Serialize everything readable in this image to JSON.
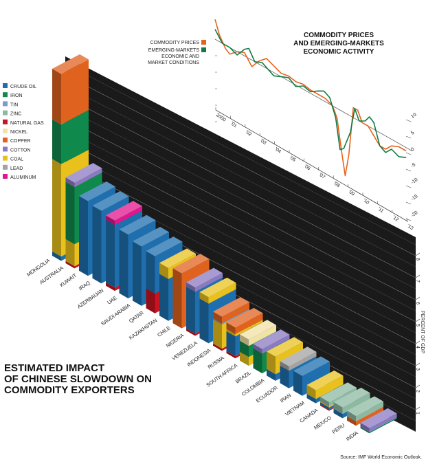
{
  "commodity_colors": {
    "CRUDE OIL": "#1f6fae",
    "IRON": "#0f8a4c",
    "TIN": "#7c9bc9",
    "ZINC": "#8db9a2",
    "NATURAL GAS": "#c8141e",
    "NICKEL": "#f1e2a6",
    "COPPER": "#e0621f",
    "COTTON": "#8a7ac2",
    "COAL": "#e8c11d",
    "LEAD": "#a3a3a3",
    "ALUMINUM": "#e0168c"
  },
  "chart_data": [
    {
      "type": "bar",
      "stacked": true,
      "title": "ESTIMATED IMPACT OF CHINESE SLOWDOWN ON COMMODITY EXPORTERS",
      "ylabel": "PERCENT OF GDP",
      "ylim": [
        0,
        8
      ],
      "yticks": [
        "1",
        "2",
        "3",
        "4",
        "5",
        "6",
        "7",
        "8"
      ],
      "legend": [
        "CRUDE OIL",
        "IRON",
        "TIN",
        "ZINC",
        "NATURAL GAS",
        "NICKEL",
        "COPPER",
        "COTTON",
        "COAL",
        "LEAD",
        "ALUMINUM"
      ],
      "legend_placement": "left",
      "countries": [
        {
          "name": "MONGOLIA",
          "segments": [
            [
              "CRUDE OIL",
              0.2
            ],
            [
              "COAL",
              4.2
            ],
            [
              "IRON",
              1.8
            ],
            [
              "COPPER",
              2.3
            ]
          ]
        },
        {
          "name": "AUSTRALIA",
          "segments": [
            [
              "NATURAL GAS",
              0.1
            ],
            [
              "COAL",
              1.0
            ],
            [
              "IRON",
              2.6
            ],
            [
              "COTTON",
              0.2
            ]
          ]
        },
        {
          "name": "KUWAIT",
          "segments": [
            [
              "CRUDE OIL",
              3.4
            ]
          ]
        },
        {
          "name": "IRAQ",
          "segments": [
            [
              "CRUDE OIL",
              3.3
            ]
          ]
        },
        {
          "name": "AZERBAIJAN",
          "segments": [
            [
              "NATURAL GAS",
              0.15
            ],
            [
              "CRUDE OIL",
              2.85
            ],
            [
              "ALUMINUM",
              0.2
            ]
          ]
        },
        {
          "name": "UAE",
          "segments": [
            [
              "CRUDE OIL",
              2.9
            ]
          ]
        },
        {
          "name": "SAUDI ARABIA",
          "segments": [
            [
              "CRUDE OIL",
              2.7
            ]
          ]
        },
        {
          "name": "QATAR",
          "segments": [
            [
              "NATURAL GAS",
              0.9
            ],
            [
              "CRUDE OIL",
              1.7
            ]
          ]
        },
        {
          "name": "KAZAKHSTAN",
          "segments": [
            [
              "CRUDE OIL",
              1.9
            ],
            [
              "COAL",
              0.5
            ]
          ]
        },
        {
          "name": "CHILE",
          "segments": [
            [
              "COPPER",
              2.5
            ]
          ]
        },
        {
          "name": "NIGERIA",
          "segments": [
            [
              "NATURAL GAS",
              0.1
            ],
            [
              "CRUDE OIL",
              1.9
            ],
            [
              "COTTON",
              0.2
            ]
          ]
        },
        {
          "name": "VENEZUELA",
          "segments": [
            [
              "CRUDE OIL",
              1.8
            ],
            [
              "COAL",
              0.3
            ]
          ]
        },
        {
          "name": "INDONESIA",
          "segments": [
            [
              "NATURAL GAS",
              0.1
            ],
            [
              "COAL",
              1.1
            ],
            [
              "TIN",
              0.05
            ],
            [
              "COPPER",
              0.3
            ]
          ]
        },
        {
          "name": "RUSSIA",
          "segments": [
            [
              "NATURAL GAS",
              0.1
            ],
            [
              "CRUDE OIL",
              0.9
            ],
            [
              "COAL",
              0.1
            ],
            [
              "COPPER",
              0.3
            ]
          ]
        },
        {
          "name": "SOUTH AFRICA",
          "segments": [
            [
              "COAL",
              0.4
            ],
            [
              "IRON",
              0.5
            ],
            [
              "NICKEL",
              0.3
            ]
          ]
        },
        {
          "name": "BRAZIL",
          "segments": [
            [
              "IRON",
              0.9
            ],
            [
              "COTTON",
              0.2
            ]
          ]
        },
        {
          "name": "COLOMBIA",
          "segments": [
            [
              "CRUDE OIL",
              0.3
            ],
            [
              "COAL",
              0.8
            ]
          ]
        },
        {
          "name": "ECUADOR",
          "segments": [
            [
              "CRUDE OIL",
              0.8
            ],
            [
              "LEAD",
              0.2
            ]
          ]
        },
        {
          "name": "IRAN",
          "segments": [
            [
              "CRUDE OIL",
              0.9
            ]
          ]
        },
        {
          "name": "VIETNAM",
          "segments": [
            [
              "CRUDE OIL",
              0.2
            ],
            [
              "COAL",
              0.4
            ]
          ]
        },
        {
          "name": "CANADA",
          "segments": [
            [
              "NATURAL GAS",
              0.05
            ],
            [
              "CRUDE OIL",
              0.1
            ],
            [
              "COAL",
              0.05
            ],
            [
              "ZINC",
              0.2
            ]
          ]
        },
        {
          "name": "MEXICO",
          "segments": [
            [
              "CRUDE OIL",
              0.2
            ],
            [
              "ZINC",
              0.3
            ]
          ]
        },
        {
          "name": "PERU",
          "segments": [
            [
              "COPPER",
              0.2
            ],
            [
              "ZINC",
              0.25
            ]
          ]
        },
        {
          "name": "INDIA",
          "segments": [
            [
              "IRON",
              0.05
            ],
            [
              "COTTON",
              0.2
            ]
          ]
        }
      ]
    },
    {
      "type": "line",
      "title": "COMMODITY PRICES AND EMERGING-MARKETS ECONOMIC ACTIVITY",
      "xticks": [
        "2000",
        "'01",
        "'02",
        "'03",
        "'04",
        "'05",
        "'06",
        "'07",
        "'08",
        "'09",
        "'10",
        "'11",
        "'12",
        "'13"
      ],
      "yticks": [
        "10",
        "5",
        "0",
        "-5",
        "-10",
        "-15",
        "-20"
      ],
      "ylim": [
        -20,
        10
      ],
      "series": [
        {
          "name": "COMMODITY PRICES",
          "color": "#e8621c",
          "x": [
            2000.0,
            2000.3,
            2000.7,
            2001.0,
            2001.5,
            2002.0,
            2002.5,
            2003.0,
            2003.5,
            2004.0,
            2004.5,
            2005.0,
            2005.5,
            2006.0,
            2006.5,
            2007.0,
            2007.5,
            2008.0,
            2008.3,
            2008.6,
            2008.85,
            2009.1,
            2009.4,
            2009.7,
            2010.0,
            2010.4,
            2010.8,
            2011.2,
            2011.6,
            2012.0,
            2012.5,
            2013.0
          ],
          "y": [
            6,
            2,
            -1,
            -2,
            0,
            1,
            -2,
            1,
            3,
            2,
            1,
            1.5,
            1,
            1.5,
            1,
            1,
            1,
            0,
            -3,
            -12,
            -19,
            -12,
            3,
            3,
            0,
            0,
            -2,
            -4,
            -4,
            -2,
            -1,
            -1
          ]
        },
        {
          "name": "EMERGING-MARKETS ECONOMIC AND MARKET CONDITIONS",
          "color": "#117a45",
          "x": [
            2000.0,
            2000.5,
            2001.0,
            2001.5,
            2002.0,
            2002.3,
            2002.7,
            2003.2,
            2003.6,
            2004.0,
            2004.5,
            2005.0,
            2005.5,
            2006.0,
            2006.5,
            2007.0,
            2007.4,
            2007.8,
            2008.2,
            2008.5,
            2008.75,
            2009.2,
            2009.5,
            2009.8,
            2010.2,
            2010.5,
            2010.8,
            2011.2,
            2011.6,
            2012.0,
            2012.5,
            2013.0
          ],
          "y": [
            3,
            0,
            0,
            -1,
            2,
            3,
            0,
            1,
            0,
            -1,
            0,
            1,
            -0.5,
            1,
            0.5,
            2,
            3,
            2,
            -3,
            -12,
            -11,
            -5,
            3,
            0,
            1,
            3,
            2,
            -4,
            -5,
            -3,
            -4,
            -3
          ]
        }
      ],
      "legend": [
        "COMMODITY PRICES",
        "EMERGING-MARKETS ECONOMIC AND MARKET CONDITIONS"
      ],
      "legend_placement": "top-left"
    }
  ],
  "legend_line2": [
    "EMERGING-MARKETS",
    "ECONOMIC AND",
    "MARKET CONDITIONS"
  ],
  "title_lines": [
    "ESTIMATED IMPACT",
    "OF CHINESE SLOWDOWN ON",
    "COMMODITY EXPORTERS"
  ],
  "line_title_lines": [
    "COMMODITY PRICES",
    "AND EMERGING-MARKETS",
    "ECONOMIC ACTIVITY"
  ],
  "source": "Source: IMF World Economic Outlook."
}
